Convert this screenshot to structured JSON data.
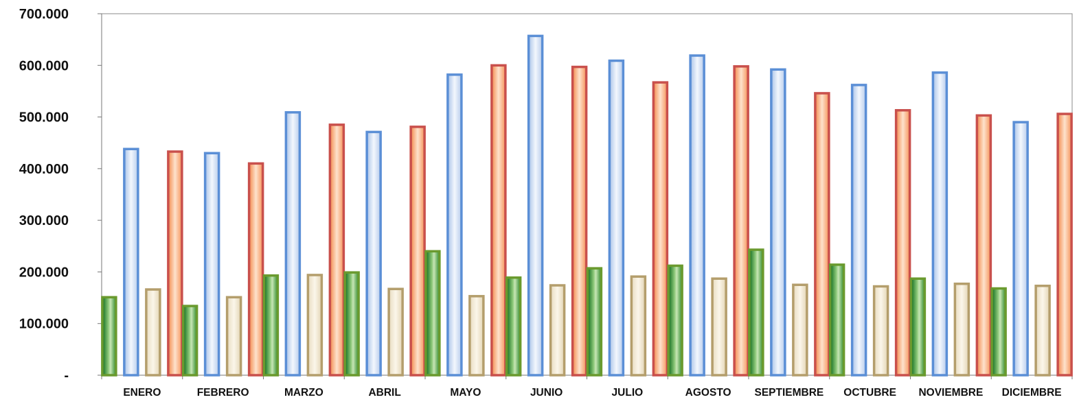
{
  "chart_data": {
    "type": "bar",
    "categories": [
      "ENERO",
      "FEBRERO",
      "MARZO",
      "ABRIL",
      "MAYO",
      "JUNIO",
      "JULIO",
      "AGOSTO",
      "SEPTIEMBRE",
      "OCTUBRE",
      "NOVIEMBRE",
      "DICIEMBRE"
    ],
    "series": [
      {
        "color": "#6a9a2e",
        "values": [
          151000,
          134000,
          193000,
          199000,
          240000,
          189000,
          207000,
          212000,
          243000,
          214000,
          187000,
          168000
        ]
      },
      {
        "color": "#5b8fd6",
        "values": [
          438000,
          430000,
          509000,
          471000,
          582000,
          657000,
          609000,
          619000,
          592000,
          562000,
          586000,
          490000
        ]
      },
      {
        "color": "#b49e6c",
        "values": [
          166000,
          151000,
          194000,
          167000,
          153000,
          174000,
          191000,
          187000,
          175000,
          172000,
          177000,
          173000
        ]
      },
      {
        "color": "#c9504c",
        "values": [
          433000,
          410000,
          485000,
          481000,
          600000,
          597000,
          567000,
          598000,
          546000,
          513000,
          503000,
          506000
        ]
      }
    ],
    "ylim": [
      0,
      700000
    ],
    "yticks": [
      "-",
      "100.000",
      "200.000",
      "300.000",
      "400.000",
      "500.000",
      "600.000",
      "700.000"
    ],
    "grid": false,
    "legend": "none"
  }
}
